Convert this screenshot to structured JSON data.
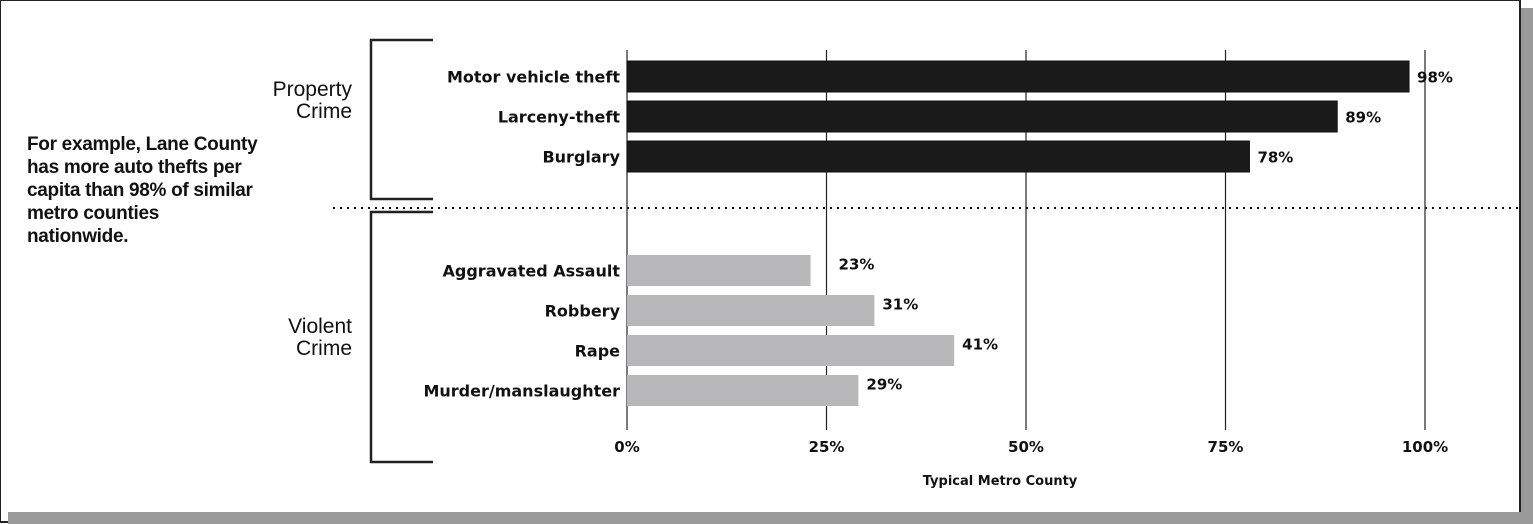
{
  "chart_data": {
    "type": "bar",
    "orientation": "horizontal",
    "xlabel": "Typical  Metro County",
    "xlim": [
      0,
      100
    ],
    "xticks": [
      "0%",
      "25%",
      "50%",
      "75%",
      "100%"
    ],
    "grid": true,
    "groups": [
      {
        "name_lines": [
          "Property",
          "Crime"
        ],
        "color": "#1a1a1a",
        "categories": [
          "Motor vehicle theft",
          "Larceny-theft",
          "Burglary"
        ],
        "values": [
          98,
          89,
          78
        ],
        "value_labels": [
          "98%",
          "89%",
          "78%"
        ]
      },
      {
        "name_lines": [
          "Violent",
          "Crime"
        ],
        "color": "#b8b8bb",
        "categories": [
          "Aggravated Assault",
          "Robbery",
          "Rape",
          "Murder/manslaughter"
        ],
        "values": [
          23,
          31,
          41,
          29
        ],
        "value_labels": [
          "23%",
          "31%",
          "41%",
          "29%"
        ]
      }
    ]
  },
  "annotation": "For example, Lane County has more auto thefts per capita than 98% of similar metro counties nationwide."
}
